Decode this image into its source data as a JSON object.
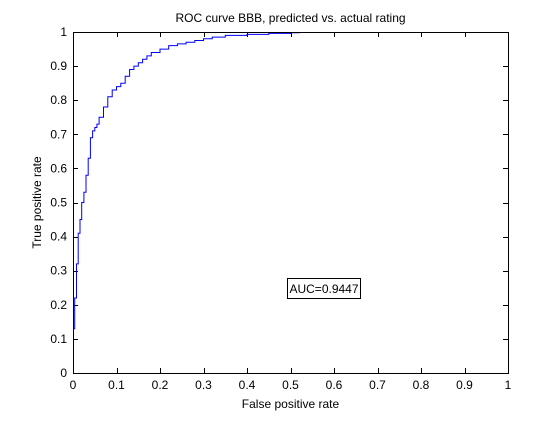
{
  "chart_data": {
    "type": "line",
    "title": "ROC curve BBB, predicted vs. actual rating",
    "xlabel": "False positive rate",
    "ylabel": "True positive rate",
    "xlim": [
      0,
      1
    ],
    "ylim": [
      0,
      1
    ],
    "grid": false,
    "x_ticks": [
      "0",
      "0.1",
      "0.2",
      "0.3",
      "0.4",
      "0.5",
      "0.6",
      "0.7",
      "0.8",
      "0.9",
      "1"
    ],
    "y_ticks": [
      "0",
      "0.1",
      "0.2",
      "0.3",
      "0.4",
      "0.5",
      "0.6",
      "0.7",
      "0.8",
      "0.9",
      "1"
    ],
    "annotation": "AUC=0.9447",
    "series": [
      {
        "color": "#0000ff",
        "x": [
          0,
          0.004,
          0.008,
          0.012,
          0.016,
          0.02,
          0.025,
          0.03,
          0.035,
          0.04,
          0.045,
          0.05,
          0.055,
          0.06,
          0.07,
          0.08,
          0.09,
          0.1,
          0.11,
          0.12,
          0.13,
          0.14,
          0.15,
          0.16,
          0.17,
          0.18,
          0.2,
          0.22,
          0.24,
          0.26,
          0.28,
          0.3,
          0.32,
          0.35,
          0.4,
          0.45,
          0.5,
          0.52
        ],
        "y": [
          0.13,
          0.22,
          0.32,
          0.41,
          0.45,
          0.5,
          0.53,
          0.58,
          0.63,
          0.69,
          0.71,
          0.72,
          0.73,
          0.75,
          0.78,
          0.81,
          0.83,
          0.84,
          0.85,
          0.87,
          0.89,
          0.9,
          0.91,
          0.92,
          0.93,
          0.94,
          0.95,
          0.96,
          0.965,
          0.97,
          0.975,
          0.98,
          0.985,
          0.99,
          0.993,
          0.996,
          0.998,
          1.0
        ]
      }
    ]
  }
}
